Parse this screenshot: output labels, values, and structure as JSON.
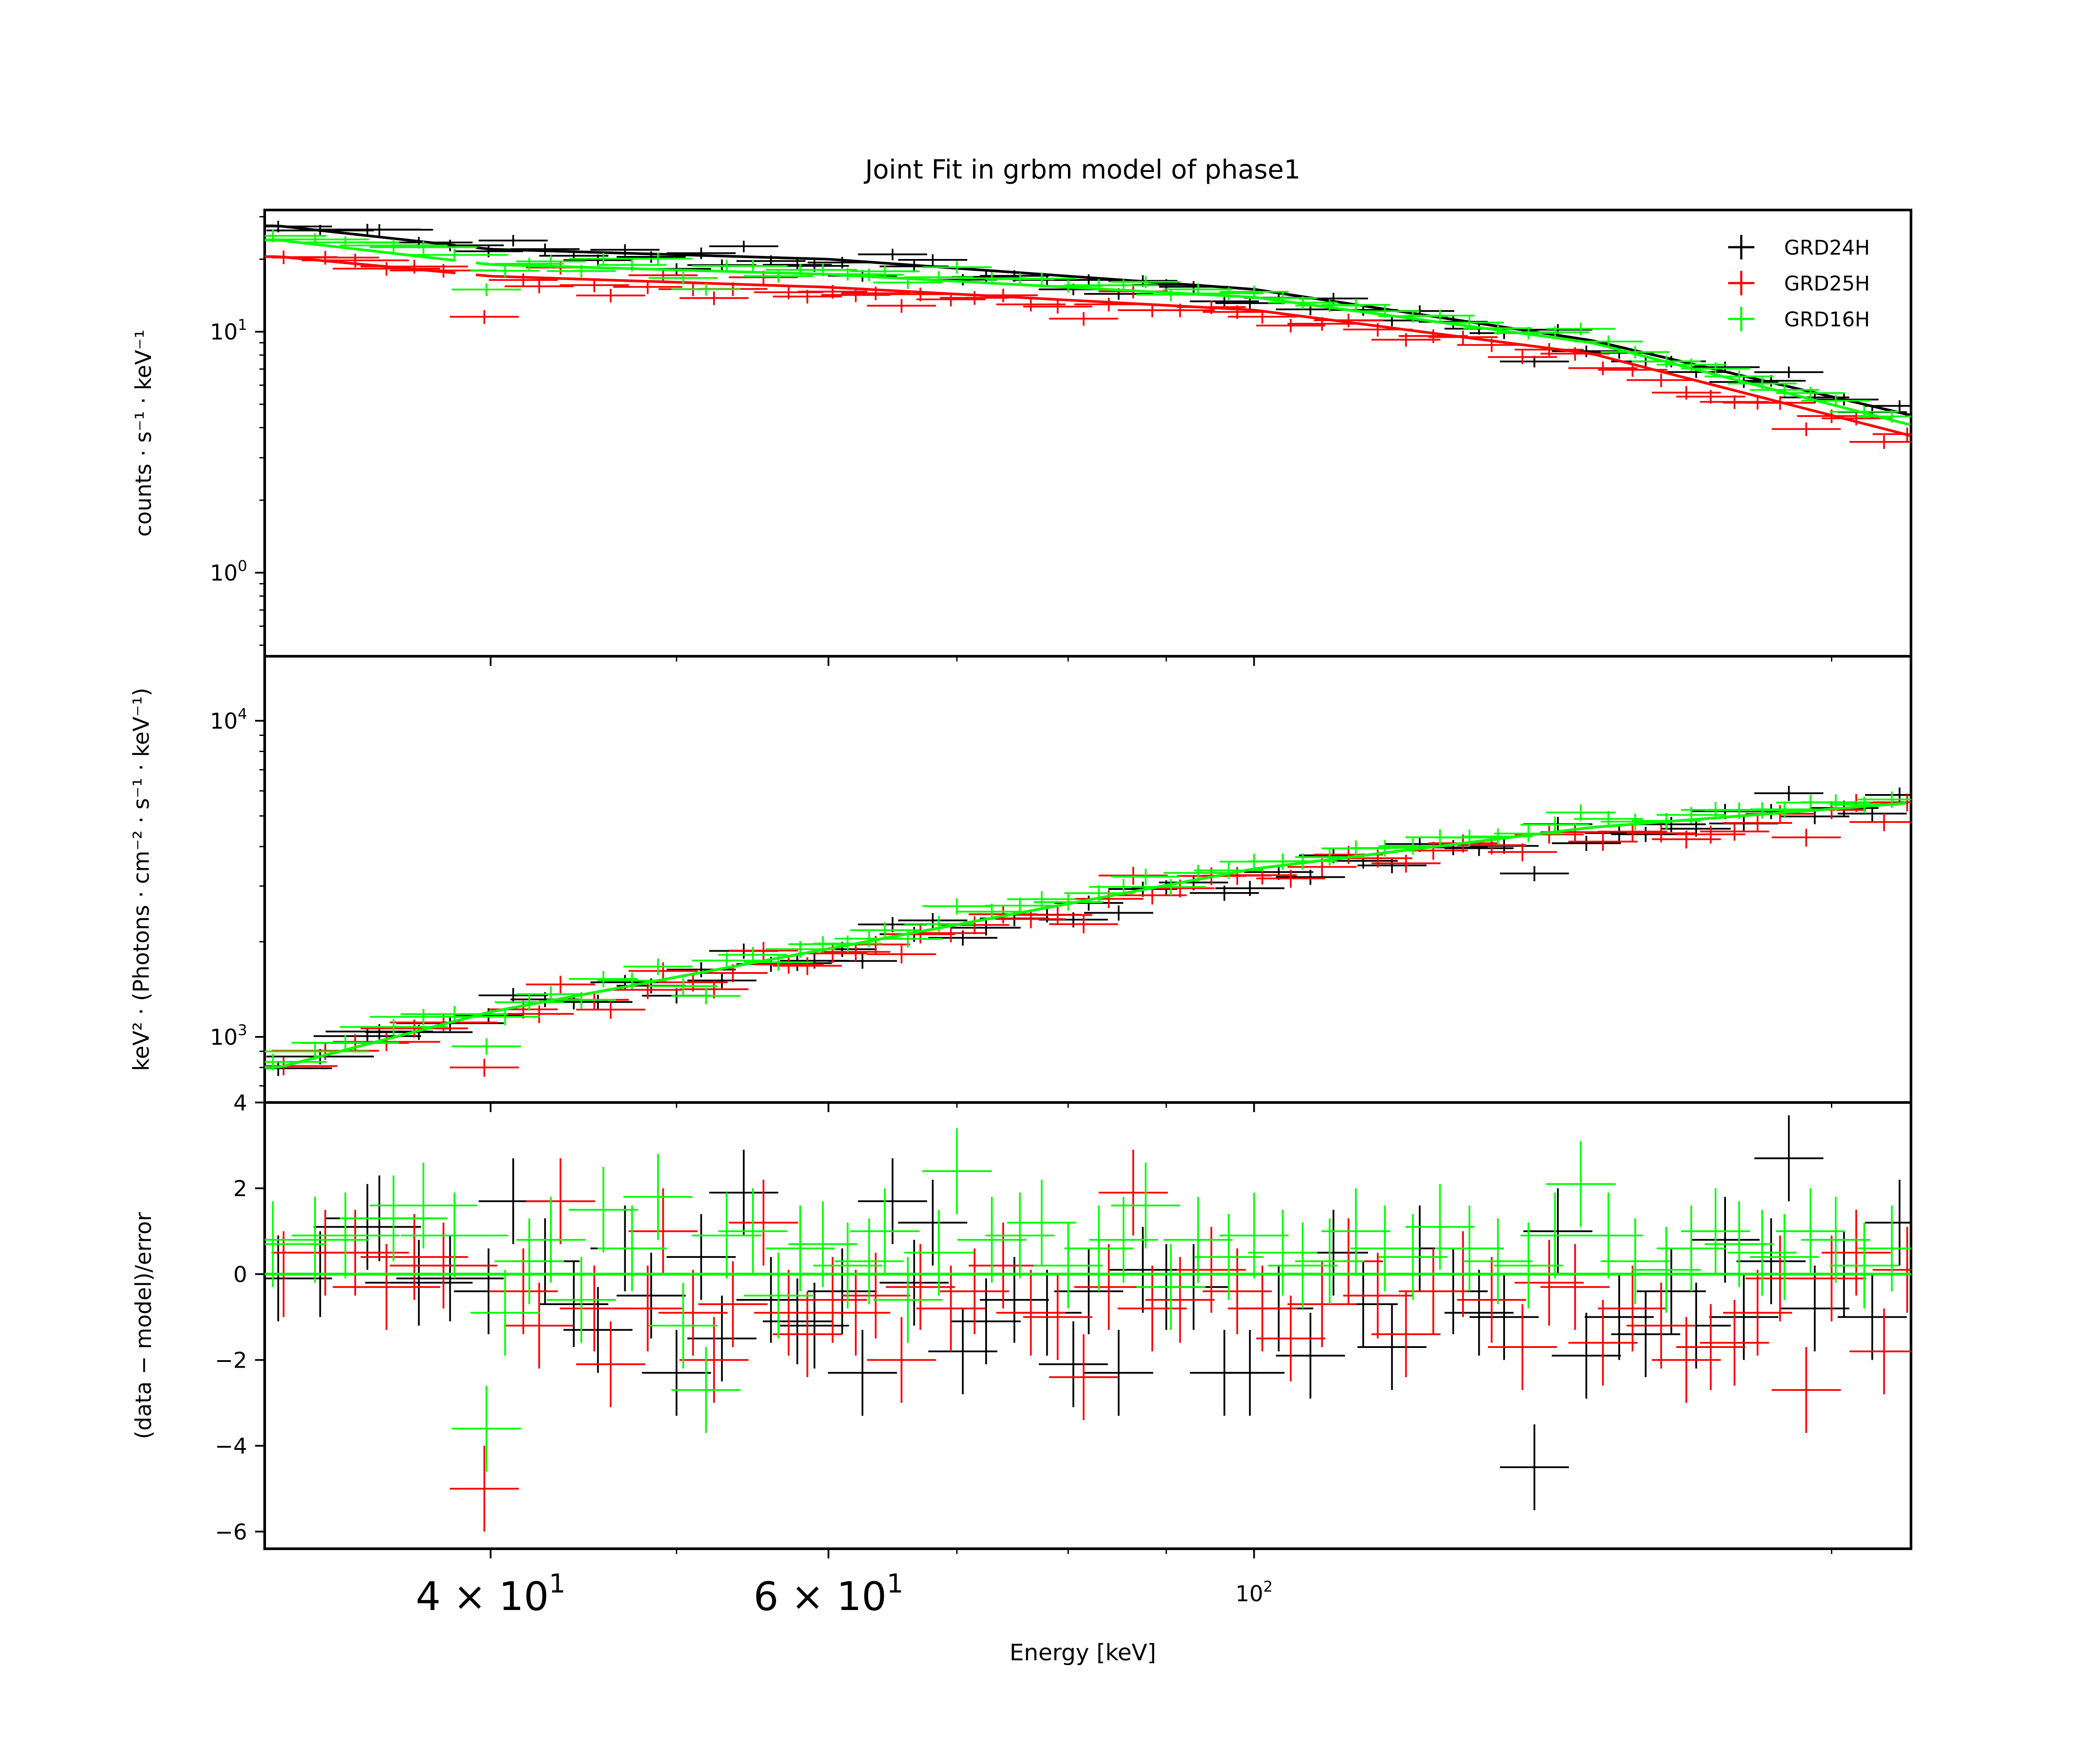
{
  "chart_data": {
    "type": "scatter",
    "title": "Joint Fit  in grbm model of phase1",
    "xlabel": "Energy [keV]",
    "xscale": "log",
    "xlim": [
      30.5,
      220
    ],
    "x_tick_labels": [
      {
        "value": 40,
        "mantissa": "4",
        "exponent": "1"
      },
      {
        "value": 60,
        "mantissa": "6",
        "exponent": "1"
      },
      {
        "value": 100,
        "mantissa": "",
        "exponent": "2"
      }
    ],
    "legend": {
      "placement": "top-right",
      "entries": [
        {
          "name": "GRD24H",
          "color": "#000000"
        },
        {
          "name": "GRD25H",
          "color": "#ff0000"
        },
        {
          "name": "GRD16H",
          "color": "#00ff00"
        }
      ]
    },
    "series_colors": [
      "#000000",
      "#ff0000",
      "#00ff00"
    ],
    "panels": [
      {
        "id": "counts",
        "ylabel": "counts · s⁻¹ · keV⁻¹",
        "yscale": "log",
        "ylim": [
          0.45,
          32
        ],
        "y_tick_labels": [
          {
            "value": 1,
            "mantissa": "10",
            "exponent": "0"
          },
          {
            "value": 10,
            "mantissa": "10",
            "exponent": "1"
          }
        ],
        "model_reference": [
          {
            "energy": 31,
            "values": [
              27.5,
              20.5,
              24.0
            ]
          },
          {
            "energy": 40,
            "values": [
              22.0,
              17.0,
              19.0
            ]
          },
          {
            "energy": 60,
            "values": [
              20.0,
              15.3,
              17.3
            ]
          },
          {
            "energy": 100,
            "values": [
              15.0,
              12.3,
              13.9
            ]
          },
          {
            "energy": 150,
            "values": [
              9.2,
              8.1,
              9.0
            ]
          },
          {
            "energy": 220,
            "values": [
              4.5,
              3.7,
              4.1
            ]
          }
        ]
      },
      {
        "id": "unfolded",
        "ylabel": "keV² · (Photons · cm⁻² · s⁻¹ · keV⁻¹)",
        "yscale": "log",
        "ylim": [
          620,
          16000
        ],
        "y_tick_labels": [
          {
            "value": 1000,
            "mantissa": "10",
            "exponent": "3"
          },
          {
            "value": 10000,
            "mantissa": "10",
            "exponent": "4"
          }
        ],
        "model_reference": [
          {
            "energy": 31,
            "value": 800
          },
          {
            "energy": 40,
            "value": 1200
          },
          {
            "energy": 60,
            "value": 1900
          },
          {
            "energy": 100,
            "value": 3400
          },
          {
            "energy": 150,
            "value": 4600
          },
          {
            "energy": 220,
            "value": 5500
          }
        ]
      },
      {
        "id": "residuals",
        "ylabel": "(data − model)/error",
        "yscale": "linear",
        "ylim": [
          -6.4,
          4.0
        ],
        "y_ticks": [
          4,
          2,
          0,
          -2,
          -4,
          -6
        ],
        "y_tick_labels_text": [
          "4",
          "2",
          "0",
          "−2",
          "−4",
          "−6"
        ],
        "zero_line": 0
      }
    ],
    "residuals": {
      "GRD24H": [
        {
          "x": 31.0,
          "y": -0.1
        },
        {
          "x": 32.6,
          "y": 0.0
        },
        {
          "x": 34.5,
          "y": 1.1
        },
        {
          "x": 35.0,
          "y": 1.3
        },
        {
          "x": 36.7,
          "y": -0.2
        },
        {
          "x": 38.1,
          "y": -0.1
        },
        {
          "x": 39.9,
          "y": -0.4
        },
        {
          "x": 41.1,
          "y": 1.7
        },
        {
          "x": 42.7,
          "y": 0.3
        },
        {
          "x": 44.2,
          "y": -0.7
        },
        {
          "x": 45.5,
          "y": -1.3
        },
        {
          "x": 47.0,
          "y": 0.6
        },
        {
          "x": 48.5,
          "y": -0.5
        },
        {
          "x": 50.0,
          "y": -2.3
        },
        {
          "x": 51.5,
          "y": 0.4
        },
        {
          "x": 52.8,
          "y": -1.5
        },
        {
          "x": 54.2,
          "y": 1.9
        },
        {
          "x": 56.0,
          "y": -0.6
        },
        {
          "x": 57.8,
          "y": -1.1
        },
        {
          "x": 59.0,
          "y": -1.2
        },
        {
          "x": 61.0,
          "y": -0.4
        },
        {
          "x": 62.5,
          "y": -2.3
        },
        {
          "x": 64.8,
          "y": 1.7
        },
        {
          "x": 66.5,
          "y": -0.2
        },
        {
          "x": 68.0,
          "y": 1.2
        },
        {
          "x": 70.5,
          "y": -1.8
        },
        {
          "x": 72.5,
          "y": -1.1
        },
        {
          "x": 75.0,
          "y": -0.6
        },
        {
          "x": 78.0,
          "y": -0.9
        },
        {
          "x": 80.5,
          "y": -2.1
        },
        {
          "x": 82.0,
          "y": -0.4
        },
        {
          "x": 85.0,
          "y": -2.3
        },
        {
          "x": 87.5,
          "y": 0.1
        },
        {
          "x": 90.0,
          "y": -0.3
        },
        {
          "x": 93.0,
          "y": -0.3
        },
        {
          "x": 96.5,
          "y": -2.3
        },
        {
          "x": 99.5,
          "y": -2.3
        },
        {
          "x": 103.0,
          "y": -0.8
        },
        {
          "x": 107.0,
          "y": -1.9
        },
        {
          "x": 110.0,
          "y": 0.5
        },
        {
          "x": 114.0,
          "y": -0.7
        },
        {
          "x": 118.0,
          "y": -1.7
        },
        {
          "x": 122.0,
          "y": 0.6
        },
        {
          "x": 127.0,
          "y": -0.4
        },
        {
          "x": 131.0,
          "y": -0.9
        },
        {
          "x": 135.0,
          "y": -1.0
        },
        {
          "x": 140.0,
          "y": -4.5
        },
        {
          "x": 144.0,
          "y": 1.0
        },
        {
          "x": 149.0,
          "y": -1.9
        },
        {
          "x": 155.0,
          "y": -1.0
        },
        {
          "x": 160.0,
          "y": -1.4
        },
        {
          "x": 165.0,
          "y": -0.4
        },
        {
          "x": 170.0,
          "y": -1.2
        },
        {
          "x": 176.0,
          "y": 0.8
        },
        {
          "x": 180.0,
          "y": -1.0
        },
        {
          "x": 186.0,
          "y": 0.3
        },
        {
          "x": 190.0,
          "y": 2.7
        },
        {
          "x": 196.0,
          "y": -0.8
        },
        {
          "x": 203.0,
          "y": 0.0
        },
        {
          "x": 210.0,
          "y": -1.0
        },
        {
          "x": 217.0,
          "y": 1.2
        }
      ],
      "GRD25H": [
        {
          "x": 31.2,
          "y": 0.0
        },
        {
          "x": 32.8,
          "y": 0.5
        },
        {
          "x": 34.0,
          "y": 0.5
        },
        {
          "x": 35.3,
          "y": -0.3
        },
        {
          "x": 36.5,
          "y": 0.4
        },
        {
          "x": 37.8,
          "y": 0.2
        },
        {
          "x": 39.7,
          "y": -5.0
        },
        {
          "x": 41.6,
          "y": -0.4
        },
        {
          "x": 42.4,
          "y": -1.2
        },
        {
          "x": 43.5,
          "y": 1.7
        },
        {
          "x": 45.3,
          "y": -0.8
        },
        {
          "x": 46.2,
          "y": -2.1
        },
        {
          "x": 48.3,
          "y": -0.8
        },
        {
          "x": 49.2,
          "y": 1.0
        },
        {
          "x": 51.0,
          "y": -0.9
        },
        {
          "x": 52.3,
          "y": -2.0
        },
        {
          "x": 53.5,
          "y": -0.7
        },
        {
          "x": 55.5,
          "y": 1.2
        },
        {
          "x": 57.2,
          "y": -0.9
        },
        {
          "x": 58.5,
          "y": -1.4
        },
        {
          "x": 60.3,
          "y": -0.6
        },
        {
          "x": 62.0,
          "y": -0.9
        },
        {
          "x": 63.5,
          "y": -0.5
        },
        {
          "x": 65.5,
          "y": -2.0
        },
        {
          "x": 67.0,
          "y": -0.3
        },
        {
          "x": 69.5,
          "y": -0.8
        },
        {
          "x": 71.5,
          "y": -0.4
        },
        {
          "x": 74.0,
          "y": 0.2
        },
        {
          "x": 76.5,
          "y": -0.9
        },
        {
          "x": 79.0,
          "y": -1.0
        },
        {
          "x": 81.5,
          "y": -2.4
        },
        {
          "x": 84.0,
          "y": -0.3
        },
        {
          "x": 86.5,
          "y": 1.9
        },
        {
          "x": 88.5,
          "y": -0.8
        },
        {
          "x": 91.5,
          "y": -0.6
        },
        {
          "x": 95.0,
          "y": 0.1
        },
        {
          "x": 98.0,
          "y": -0.4
        },
        {
          "x": 101.0,
          "y": -0.8
        },
        {
          "x": 104.5,
          "y": -1.5
        },
        {
          "x": 108.5,
          "y": -0.7
        },
        {
          "x": 112.0,
          "y": 0.3
        },
        {
          "x": 116.0,
          "y": -0.5
        },
        {
          "x": 120.0,
          "y": -1.4
        },
        {
          "x": 124.0,
          "y": -0.4
        },
        {
          "x": 128.5,
          "y": 0.0
        },
        {
          "x": 133.0,
          "y": -0.6
        },
        {
          "x": 138.0,
          "y": -1.7
        },
        {
          "x": 142.5,
          "y": -0.2
        },
        {
          "x": 147.0,
          "y": -0.3
        },
        {
          "x": 152.0,
          "y": -1.6
        },
        {
          "x": 157.5,
          "y": -0.8
        },
        {
          "x": 163.0,
          "y": -1.2
        },
        {
          "x": 168.0,
          "y": -2.0
        },
        {
          "x": 173.0,
          "y": -1.7
        },
        {
          "x": 178.0,
          "y": -1.6
        },
        {
          "x": 183.0,
          "y": -0.9
        },
        {
          "x": 188.0,
          "y": -0.1
        },
        {
          "x": 194.0,
          "y": -2.7
        },
        {
          "x": 200.0,
          "y": -0.1
        },
        {
          "x": 206.0,
          "y": 0.5
        },
        {
          "x": 213.0,
          "y": -1.8
        },
        {
          "x": 219.0,
          "y": 0.1
        }
      ],
      "GRD16H": [
        {
          "x": 30.8,
          "y": 0.7
        },
        {
          "x": 32.4,
          "y": 0.8
        },
        {
          "x": 33.6,
          "y": 0.9
        },
        {
          "x": 35.6,
          "y": 1.3
        },
        {
          "x": 36.9,
          "y": 1.6
        },
        {
          "x": 38.3,
          "y": 0.9
        },
        {
          "x": 39.8,
          "y": -3.6
        },
        {
          "x": 40.7,
          "y": -0.9
        },
        {
          "x": 41.9,
          "y": 0.3
        },
        {
          "x": 43.0,
          "y": 0.8
        },
        {
          "x": 44.6,
          "y": -0.6
        },
        {
          "x": 45.8,
          "y": 1.5
        },
        {
          "x": 47.4,
          "y": 0.6
        },
        {
          "x": 48.9,
          "y": 1.8
        },
        {
          "x": 50.4,
          "y": -1.2
        },
        {
          "x": 51.8,
          "y": -2.7
        },
        {
          "x": 53.1,
          "y": 0.9
        },
        {
          "x": 54.8,
          "y": 1.0
        },
        {
          "x": 56.5,
          "y": -0.5
        },
        {
          "x": 58.0,
          "y": 0.6
        },
        {
          "x": 59.6,
          "y": 0.7
        },
        {
          "x": 61.4,
          "y": 0.2
        },
        {
          "x": 63.0,
          "y": 0.3
        },
        {
          "x": 64.2,
          "y": 1.0
        },
        {
          "x": 66.0,
          "y": -0.6
        },
        {
          "x": 68.5,
          "y": 0.5
        },
        {
          "x": 70.0,
          "y": 2.4
        },
        {
          "x": 73.0,
          "y": 0.8
        },
        {
          "x": 75.5,
          "y": 0.9
        },
        {
          "x": 77.5,
          "y": 1.2
        },
        {
          "x": 80.0,
          "y": 0.2
        },
        {
          "x": 83.0,
          "y": 0.6
        },
        {
          "x": 85.5,
          "y": 0.8
        },
        {
          "x": 87.8,
          "y": 1.6
        },
        {
          "x": 90.5,
          "y": -0.3
        },
        {
          "x": 93.5,
          "y": 0.8
        },
        {
          "x": 97.0,
          "y": 0.4
        },
        {
          "x": 100.0,
          "y": 0.9
        },
        {
          "x": 103.5,
          "y": 0.5
        },
        {
          "x": 106.0,
          "y": 0.2
        },
        {
          "x": 109.5,
          "y": 0.3
        },
        {
          "x": 113.0,
          "y": 1.0
        },
        {
          "x": 117.0,
          "y": 0.6
        },
        {
          "x": 121.0,
          "y": 0.4
        },
        {
          "x": 125.0,
          "y": 1.1
        },
        {
          "x": 129.5,
          "y": 0.6
        },
        {
          "x": 134.0,
          "y": 0.3
        },
        {
          "x": 139.0,
          "y": 0.2
        },
        {
          "x": 143.5,
          "y": 0.9
        },
        {
          "x": 148.0,
          "y": 2.1
        },
        {
          "x": 153.0,
          "y": 0.9
        },
        {
          "x": 158.0,
          "y": 0.3
        },
        {
          "x": 164.0,
          "y": 0.1
        },
        {
          "x": 169.0,
          "y": 0.6
        },
        {
          "x": 174.0,
          "y": 1.0
        },
        {
          "x": 179.0,
          "y": 0.7
        },
        {
          "x": 184.0,
          "y": 0.5
        },
        {
          "x": 189.0,
          "y": 0.4
        },
        {
          "x": 195.0,
          "y": 1.0
        },
        {
          "x": 201.0,
          "y": 0.8
        },
        {
          "x": 208.0,
          "y": 0.2
        },
        {
          "x": 215.0,
          "y": 0.6
        }
      ]
    }
  }
}
